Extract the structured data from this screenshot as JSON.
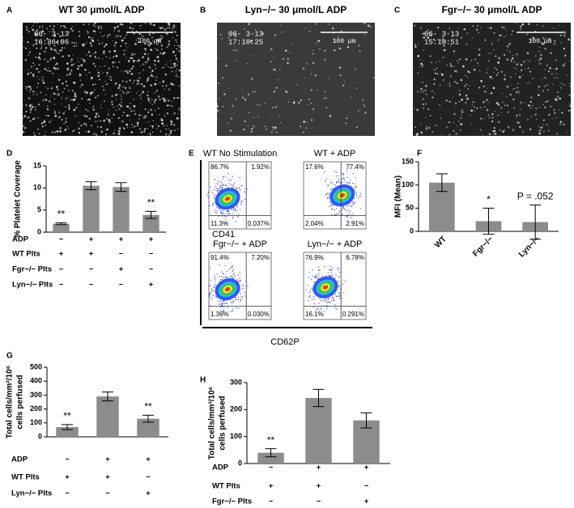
{
  "images": [
    {
      "panel": "A",
      "title": "WT 30 μmol/L ADP",
      "date": "06- 3-13",
      "time": "16:36:06",
      "scale": "100 μm"
    },
    {
      "panel": "B",
      "title": "Lyn−/− 30 μmol/L ADP",
      "date": "06- 3-13",
      "time": "17:16:25",
      "scale": "100 μm"
    },
    {
      "panel": "C",
      "title": "Fgr−/− 30 μmol/L ADP",
      "date": "06- 3-13",
      "time": "15:18:51",
      "scale": "100 μm"
    }
  ],
  "flow": {
    "panel": "E",
    "y_label": "CD41",
    "x_label": "CD62P",
    "plots": [
      {
        "title": "WT No Stimulation",
        "quadrants": [
          "86.7%",
          "1.92%",
          "11.3%",
          "0.037%"
        ]
      },
      {
        "title": "WT + ADP",
        "quadrants": [
          "17.6%",
          "77.4%",
          "2.04%",
          "2.91%"
        ]
      },
      {
        "title": "Fgr−/− + ADP",
        "quadrants": [
          "91.4%",
          "7.20%",
          "1.36%",
          "0.030%"
        ]
      },
      {
        "title": "Lyn−/− + ADP",
        "quadrants": [
          "76.9%",
          "6.78%",
          "16.1%",
          "0.291%"
        ]
      }
    ]
  },
  "chart_data": [
    {
      "type": "bar",
      "panel": "D",
      "ylabel": "% Platelet Coverage",
      "categories": [
        null,
        null,
        null,
        null
      ],
      "values": [
        1.9,
        10.5,
        10.2,
        3.9
      ],
      "errors": [
        0.2,
        0.9,
        1.0,
        0.8
      ],
      "value_annotations": [
        "**",
        null,
        null,
        "**"
      ],
      "color": "#8c8c8c",
      "ylim": [
        0,
        15
      ],
      "yticks": [
        0,
        5,
        10,
        15
      ],
      "conditions": [
        {
          "name": "ADP",
          "marks": [
            "−",
            "+",
            "+",
            "+"
          ]
        },
        {
          "name": "WT Plts",
          "marks": [
            "+",
            "+",
            "−",
            "−"
          ]
        },
        {
          "name": "Fgr−/− Plts",
          "marks": [
            "−",
            "−",
            "+",
            "−"
          ]
        },
        {
          "name": "Lyn−/− Plts",
          "marks": [
            "−",
            "−",
            "−",
            "+"
          ]
        }
      ]
    },
    {
      "type": "bar",
      "panel": "F",
      "ylabel": "MFI (Mean)",
      "categories": [
        "WT",
        "Fgr−/−",
        "Lyn−/−"
      ],
      "values": [
        105,
        22,
        20
      ],
      "errors": [
        19,
        28,
        37
      ],
      "value_annotations": [
        null,
        "*",
        "P = .052"
      ],
      "color": "#8c8c8c",
      "ylim": [
        0,
        150
      ],
      "yticks": [
        0,
        50,
        100,
        150
      ],
      "conditions": []
    },
    {
      "type": "bar",
      "panel": "G",
      "ylabel": [
        "Total cells/mm²/10⁶",
        "cells perfused"
      ],
      "categories": [
        null,
        null,
        null
      ],
      "values": [
        70,
        290,
        130
      ],
      "errors": [
        18,
        32,
        25
      ],
      "value_annotations": [
        "**",
        null,
        "**"
      ],
      "color": "#8c8c8c",
      "ylim": [
        0,
        500
      ],
      "yticks": [
        0,
        100,
        200,
        300,
        400,
        500
      ],
      "conditions": [
        {
          "name": "ADP",
          "marks": [
            "−",
            "+",
            "+"
          ]
        },
        {
          "name": "WT Plts",
          "marks": [
            "+",
            "+",
            "−"
          ]
        },
        {
          "name": "Lyn−/− Plts",
          "marks": [
            "−",
            "−",
            "+"
          ]
        }
      ]
    },
    {
      "type": "bar",
      "panel": "H",
      "ylabel": [
        "Total cells/mm²/10⁶",
        "cells perfused"
      ],
      "categories": [
        null,
        null,
        null
      ],
      "values": [
        40,
        243,
        160
      ],
      "errors": [
        15,
        32,
        28
      ],
      "value_annotations": [
        "**",
        null,
        null
      ],
      "color": "#8c8c8c",
      "ylim": [
        0,
        300
      ],
      "yticks": [
        0,
        100,
        200,
        300
      ],
      "conditions": [
        {
          "name": "ADP",
          "marks": [
            "−",
            "+",
            "+"
          ]
        },
        {
          "name": "WT Plts",
          "marks": [
            "+",
            "+",
            "−"
          ]
        },
        {
          "name": "Fgr−/− Plts",
          "marks": [
            "−",
            "−",
            "+"
          ]
        }
      ]
    }
  ]
}
